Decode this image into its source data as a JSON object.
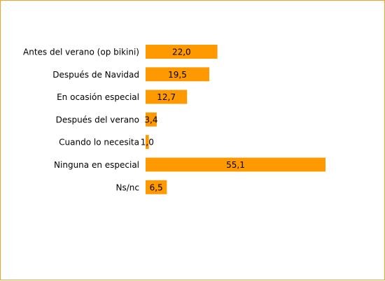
{
  "chart_data": {
    "type": "bar",
    "orientation": "horizontal",
    "categories": [
      "Antes del verano (op bikini)",
      "Después de Navidad",
      "En ocasión especial",
      "Después del verano",
      "Cuando lo necesita",
      "Ninguna en especial",
      "Ns/nc"
    ],
    "values": [
      22.0,
      19.5,
      12.7,
      3.4,
      1.0,
      55.1,
      6.5
    ],
    "value_labels": [
      "22,0",
      "19,5",
      "12,7",
      "3,4",
      "1,0",
      "55,1",
      "6,5"
    ],
    "title": "",
    "xlabel": "",
    "ylabel": "",
    "xlim": [
      0,
      55.1
    ],
    "grid": false,
    "legend": "none",
    "bar_color": "#ff9900",
    "border_color": "#f0a030"
  }
}
